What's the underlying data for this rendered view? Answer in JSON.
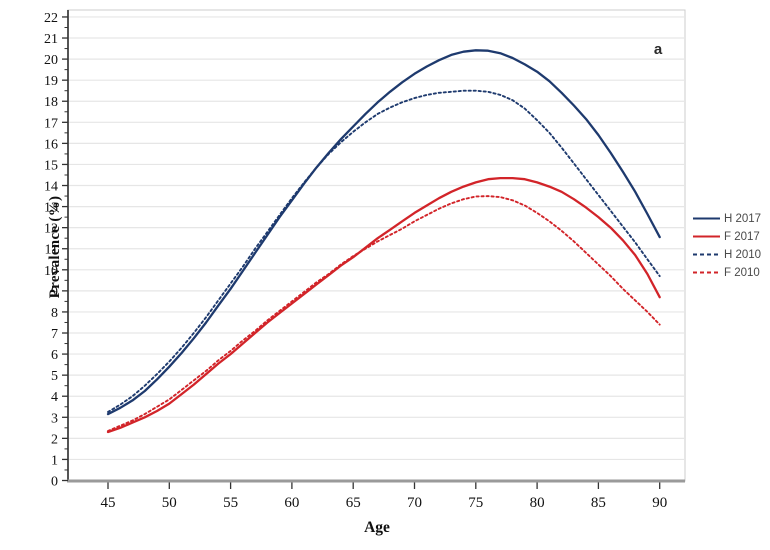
{
  "figure": {
    "panel_label": "a"
  },
  "chart_data": {
    "type": "line",
    "title": "",
    "xlabel": "Age",
    "ylabel": "Prevalence (%)",
    "xlim": [
      41.7,
      92
    ],
    "ylim": [
      0,
      22.4
    ],
    "x_ticks": [
      45,
      50,
      55,
      60,
      65,
      70,
      75,
      80,
      85,
      90
    ],
    "y_ticks": [
      0,
      1,
      2,
      3,
      4,
      5,
      6,
      7,
      8,
      9,
      10,
      11,
      12,
      13,
      14,
      15,
      16,
      17,
      18,
      19,
      20,
      21,
      22
    ],
    "y_minor_tick_step": 0.5,
    "grid": "horizontal-only",
    "gridline_color": "#e6e6e6",
    "legend_position": "right-outside-middle",
    "series": [
      {
        "name": "H 2017",
        "color": "#1e3a6e",
        "style": "solid",
        "points": [
          [
            45,
            3.15
          ],
          [
            46,
            3.45
          ],
          [
            47,
            3.8
          ],
          [
            48,
            4.25
          ],
          [
            49,
            4.8
          ],
          [
            50,
            5.4
          ],
          [
            51,
            6.05
          ],
          [
            52,
            6.75
          ],
          [
            53,
            7.5
          ],
          [
            54,
            8.3
          ],
          [
            55,
            9.1
          ],
          [
            56,
            9.95
          ],
          [
            57,
            10.8
          ],
          [
            58,
            11.65
          ],
          [
            59,
            12.5
          ],
          [
            60,
            13.3
          ],
          [
            61,
            14.1
          ],
          [
            62,
            14.85
          ],
          [
            63,
            15.55
          ],
          [
            64,
            16.2
          ],
          [
            65,
            16.8
          ],
          [
            66,
            17.4
          ],
          [
            67,
            17.95
          ],
          [
            68,
            18.45
          ],
          [
            69,
            18.9
          ],
          [
            70,
            19.3
          ],
          [
            71,
            19.65
          ],
          [
            72,
            19.95
          ],
          [
            73,
            20.2
          ],
          [
            74,
            20.35
          ],
          [
            75,
            20.42
          ],
          [
            76,
            20.4
          ],
          [
            77,
            20.28
          ],
          [
            78,
            20.05
          ],
          [
            79,
            19.75
          ],
          [
            80,
            19.4
          ],
          [
            81,
            18.95
          ],
          [
            82,
            18.4
          ],
          [
            83,
            17.8
          ],
          [
            84,
            17.15
          ],
          [
            85,
            16.4
          ],
          [
            86,
            15.55
          ],
          [
            87,
            14.65
          ],
          [
            88,
            13.7
          ],
          [
            89,
            12.65
          ],
          [
            90,
            11.55
          ]
        ]
      },
      {
        "name": "F 2017",
        "color": "#d22429",
        "style": "solid",
        "points": [
          [
            45,
            2.3
          ],
          [
            46,
            2.5
          ],
          [
            47,
            2.75
          ],
          [
            48,
            3.0
          ],
          [
            49,
            3.3
          ],
          [
            50,
            3.65
          ],
          [
            51,
            4.1
          ],
          [
            52,
            4.55
          ],
          [
            53,
            5.05
          ],
          [
            54,
            5.55
          ],
          [
            55,
            6.0
          ],
          [
            56,
            6.5
          ],
          [
            57,
            7.0
          ],
          [
            58,
            7.5
          ],
          [
            59,
            7.95
          ],
          [
            60,
            8.4
          ],
          [
            61,
            8.85
          ],
          [
            62,
            9.3
          ],
          [
            63,
            9.75
          ],
          [
            64,
            10.2
          ],
          [
            65,
            10.6
          ],
          [
            66,
            11.05
          ],
          [
            67,
            11.5
          ],
          [
            68,
            11.9
          ],
          [
            69,
            12.3
          ],
          [
            70,
            12.7
          ],
          [
            71,
            13.05
          ],
          [
            72,
            13.4
          ],
          [
            73,
            13.7
          ],
          [
            74,
            13.95
          ],
          [
            75,
            14.15
          ],
          [
            76,
            14.3
          ],
          [
            77,
            14.35
          ],
          [
            78,
            14.35
          ],
          [
            79,
            14.3
          ],
          [
            80,
            14.15
          ],
          [
            81,
            13.95
          ],
          [
            82,
            13.7
          ],
          [
            83,
            13.35
          ],
          [
            84,
            12.95
          ],
          [
            85,
            12.5
          ],
          [
            86,
            12.0
          ],
          [
            87,
            11.4
          ],
          [
            88,
            10.7
          ],
          [
            89,
            9.8
          ],
          [
            90,
            8.7
          ]
        ]
      },
      {
        "name": "H 2010",
        "color": "#1e3a6e",
        "style": "dashed",
        "points": [
          [
            45,
            3.25
          ],
          [
            46,
            3.6
          ],
          [
            47,
            4.0
          ],
          [
            48,
            4.5
          ],
          [
            49,
            5.05
          ],
          [
            50,
            5.65
          ],
          [
            51,
            6.3
          ],
          [
            52,
            7.0
          ],
          [
            53,
            7.75
          ],
          [
            54,
            8.55
          ],
          [
            55,
            9.35
          ],
          [
            56,
            10.15
          ],
          [
            57,
            11.0
          ],
          [
            58,
            11.8
          ],
          [
            59,
            12.6
          ],
          [
            60,
            13.4
          ],
          [
            61,
            14.15
          ],
          [
            62,
            14.85
          ],
          [
            63,
            15.5
          ],
          [
            64,
            16.05
          ],
          [
            65,
            16.55
          ],
          [
            66,
            17.0
          ],
          [
            67,
            17.4
          ],
          [
            68,
            17.7
          ],
          [
            69,
            17.95
          ],
          [
            70,
            18.15
          ],
          [
            71,
            18.3
          ],
          [
            72,
            18.4
          ],
          [
            73,
            18.45
          ],
          [
            74,
            18.5
          ],
          [
            75,
            18.5
          ],
          [
            76,
            18.45
          ],
          [
            77,
            18.3
          ],
          [
            78,
            18.05
          ],
          [
            79,
            17.65
          ],
          [
            80,
            17.1
          ],
          [
            81,
            16.5
          ],
          [
            82,
            15.8
          ],
          [
            83,
            15.05
          ],
          [
            84,
            14.3
          ],
          [
            85,
            13.55
          ],
          [
            86,
            12.8
          ],
          [
            87,
            12.05
          ],
          [
            88,
            11.3
          ],
          [
            89,
            10.5
          ],
          [
            90,
            9.7
          ]
        ]
      },
      {
        "name": "F 2010",
        "color": "#d22429",
        "style": "dashed",
        "points": [
          [
            45,
            2.35
          ],
          [
            46,
            2.6
          ],
          [
            47,
            2.85
          ],
          [
            48,
            3.15
          ],
          [
            49,
            3.5
          ],
          [
            50,
            3.85
          ],
          [
            51,
            4.3
          ],
          [
            52,
            4.75
          ],
          [
            53,
            5.2
          ],
          [
            54,
            5.7
          ],
          [
            55,
            6.15
          ],
          [
            56,
            6.65
          ],
          [
            57,
            7.1
          ],
          [
            58,
            7.6
          ],
          [
            59,
            8.05
          ],
          [
            60,
            8.5
          ],
          [
            61,
            8.95
          ],
          [
            62,
            9.4
          ],
          [
            63,
            9.8
          ],
          [
            64,
            10.25
          ],
          [
            65,
            10.65
          ],
          [
            66,
            11.0
          ],
          [
            67,
            11.35
          ],
          [
            68,
            11.65
          ],
          [
            69,
            11.95
          ],
          [
            70,
            12.3
          ],
          [
            71,
            12.6
          ],
          [
            72,
            12.9
          ],
          [
            73,
            13.15
          ],
          [
            74,
            13.35
          ],
          [
            75,
            13.48
          ],
          [
            76,
            13.5
          ],
          [
            77,
            13.45
          ],
          [
            78,
            13.3
          ],
          [
            79,
            13.05
          ],
          [
            80,
            12.7
          ],
          [
            81,
            12.3
          ],
          [
            82,
            11.85
          ],
          [
            83,
            11.35
          ],
          [
            84,
            10.8
          ],
          [
            85,
            10.25
          ],
          [
            86,
            9.7
          ],
          [
            87,
            9.1
          ],
          [
            88,
            8.55
          ],
          [
            89,
            8.0
          ],
          [
            90,
            7.4
          ]
        ]
      }
    ]
  },
  "colors": {
    "axis_line": "#555555",
    "bottom_axis_line": "#9a9a9a",
    "frame_border": "#cccccc",
    "tick": "#333333",
    "tick_label": "#111111",
    "legend_text": "#4a4a4a"
  }
}
